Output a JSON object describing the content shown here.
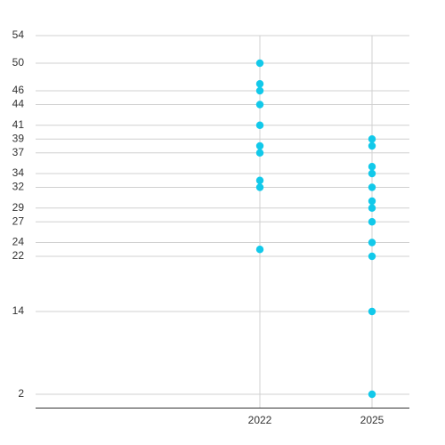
{
  "chart_data": {
    "type": "scatter",
    "x": [
      2022,
      2022,
      2022,
      2022,
      2022,
      2022,
      2022,
      2022,
      2022,
      2022,
      2025,
      2025,
      2025,
      2025,
      2025,
      2025,
      2025,
      2025,
      2025,
      2025,
      2025,
      2025
    ],
    "values": [
      50,
      47,
      46,
      44,
      41,
      38,
      37,
      33,
      32,
      23,
      39,
      38,
      35,
      34,
      32,
      30,
      29,
      27,
      24,
      22,
      14,
      2
    ],
    "color": "#12c9ea",
    "xlim": [
      2016,
      2026
    ],
    "xticks": [
      2022,
      2025
    ],
    "ylim": [
      0,
      54
    ],
    "yticks": [
      2,
      14,
      22,
      24,
      27,
      29,
      32,
      34,
      37,
      39,
      41,
      44,
      46,
      50,
      54
    ],
    "grid": true
  }
}
